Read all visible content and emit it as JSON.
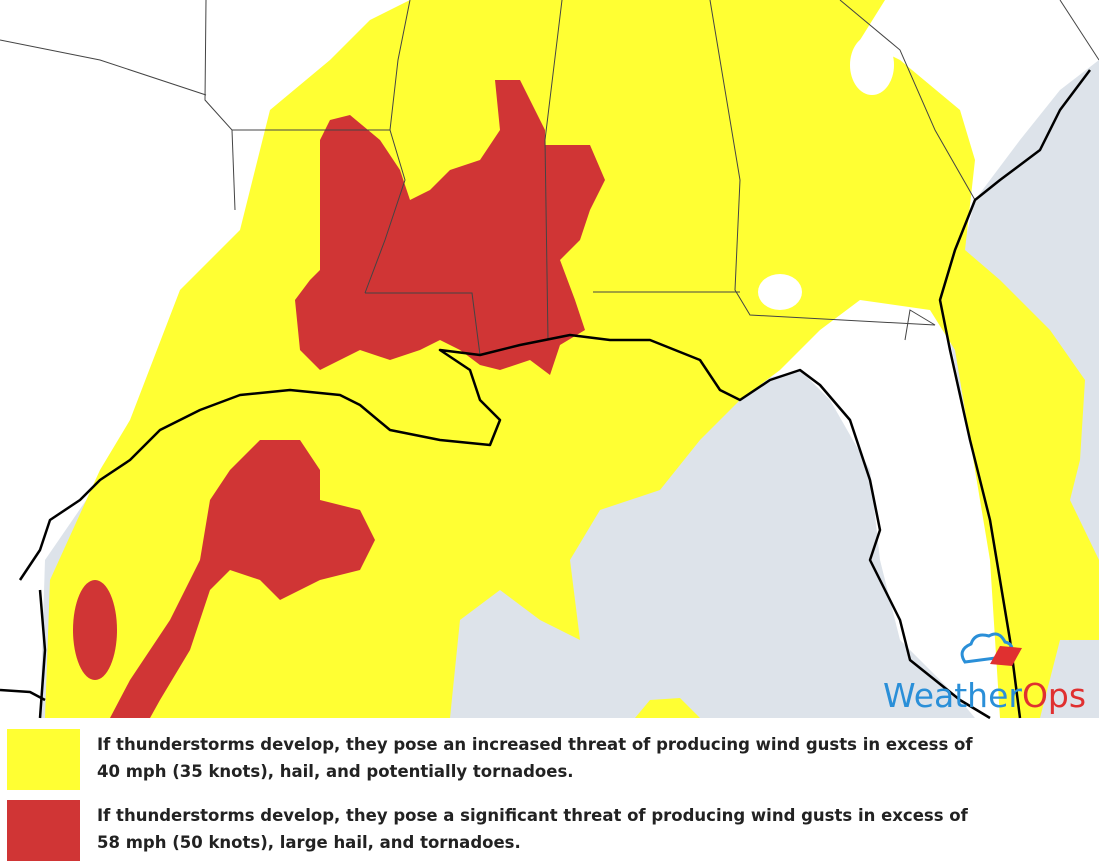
{
  "map": {
    "logo": {
      "part1": "Weather",
      "part2": "Ops"
    }
  },
  "legend": [
    {
      "color": "#ffff33",
      "lines": [
        "If thunderstorms develop, they pose an increased threat of producing wind gusts in excess of",
        "40 mph (35 knots), hail, and potentially tornadoes."
      ]
    },
    {
      "color": "#d03535",
      "lines": [
        "If thunderstorms develop, they pose a significant threat of producing wind gusts in excess of",
        "58 mph (50 knots), large hail, and tornadoes."
      ]
    }
  ]
}
